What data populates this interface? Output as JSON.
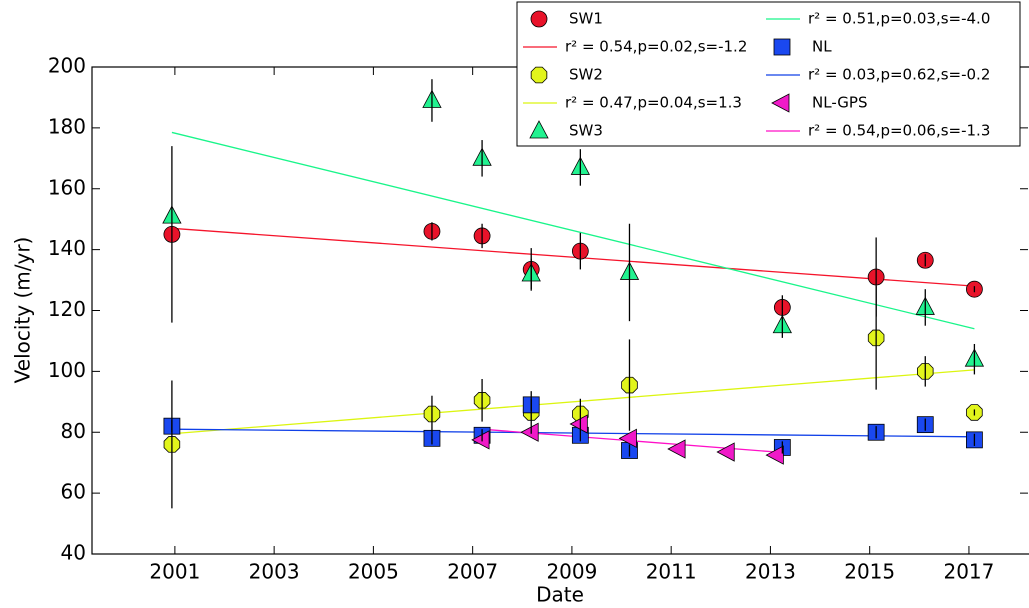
{
  "chart_data": {
    "type": "scatter",
    "x_label": "Date",
    "y_label": "Velocity (m/yr)",
    "xlim": [
      1999.33,
      2018.19
    ],
    "ylim": [
      40,
      200
    ],
    "xticks": [
      2001,
      2003,
      2005,
      2007,
      2009,
      2011,
      2013,
      2015,
      2017
    ],
    "yticks": [
      40,
      60,
      80,
      100,
      120,
      140,
      160,
      180,
      200
    ],
    "series": [
      {
        "name": "SW1",
        "color": "#e8132a",
        "marker": "circle",
        "x": [
          2000.94,
          2006.18,
          2007.19,
          2008.18,
          2009.17,
          2013.24,
          2015.13,
          2016.12,
          2017.11
        ],
        "values": [
          145,
          146,
          144.5,
          133.5,
          139.5,
          121,
          131,
          136.5,
          127
        ],
        "errors": [
          29,
          3,
          4,
          7,
          6,
          4,
          13,
          2,
          1
        ]
      },
      {
        "name": "r² = 0.54,p=0.02,s=-1.2",
        "color": "#f5142b",
        "marker": "line",
        "x": [
          2000.94,
          2017.11
        ],
        "values": [
          147,
          128
        ]
      },
      {
        "name": "SW2",
        "color": "#e2f51c",
        "marker": "octagon",
        "x": [
          2000.94,
          2006.18,
          2007.19,
          2008.18,
          2009.17,
          2010.16,
          2015.13,
          2016.12,
          2017.11
        ],
        "values": [
          76,
          86,
          90.5,
          86.5,
          86,
          95.5,
          111,
          100,
          86.5
        ],
        "errors": [
          21,
          6,
          7,
          7,
          5,
          15,
          17,
          5,
          1
        ]
      },
      {
        "name": "r² = 0.47,p=0.04,s=1.3",
        "color": "#dcf510",
        "marker": "line",
        "x": [
          2000.94,
          2017.11
        ],
        "values": [
          79.5,
          100.5
        ]
      },
      {
        "name": "SW3",
        "color": "#22f290",
        "marker": "triangle",
        "x": [
          2000.94,
          2006.18,
          2007.19,
          2008.18,
          2009.17,
          2010.16,
          2013.24,
          2016.12,
          2017.11
        ],
        "values": [
          151,
          189,
          170,
          132,
          167,
          132.5,
          115,
          121,
          104
        ],
        "errors": [
          null,
          7,
          6,
          5,
          6,
          16,
          4,
          6,
          5
        ]
      },
      {
        "name": "r² = 0.51,p=0.03,s=-4.0",
        "color": "#19f58a",
        "marker": "line",
        "x": [
          2000.94,
          2017.11
        ],
        "values": [
          178.5,
          114
        ]
      },
      {
        "name": "NL",
        "color": "#1a48f0",
        "marker": "square",
        "x": [
          2000.94,
          2006.18,
          2007.19,
          2008.18,
          2009.17,
          2010.16,
          2013.24,
          2015.13,
          2016.12,
          2017.11
        ],
        "values": [
          82,
          78,
          79,
          89,
          79,
          74,
          75,
          80,
          82.5,
          77.5
        ],
        "errors": [
          2,
          2,
          2,
          2,
          2,
          2,
          2,
          2,
          2,
          2
        ]
      },
      {
        "name": "r² = 0.03,p=0.62,s=-0.2",
        "color": "#1040e8",
        "marker": "line",
        "x": [
          2000.94,
          2017.11
        ],
        "values": [
          81,
          78.5
        ]
      },
      {
        "name": "NL-GPS",
        "color": "#f01ac8",
        "marker": "lefttriangle",
        "x": [
          2007.19,
          2008.18,
          2009.17,
          2010.16,
          2011.14,
          2012.13,
          2013.12
        ],
        "values": [
          77.5,
          80,
          82.7,
          78,
          74.5,
          73.5,
          72.5
        ]
      },
      {
        "name": "r² = 0.54,p=0.06,s=-1.3",
        "color": "#ff10c8",
        "marker": "line",
        "x": [
          2007.19,
          2013.12
        ],
        "values": [
          81,
          73.5
        ]
      }
    ]
  }
}
